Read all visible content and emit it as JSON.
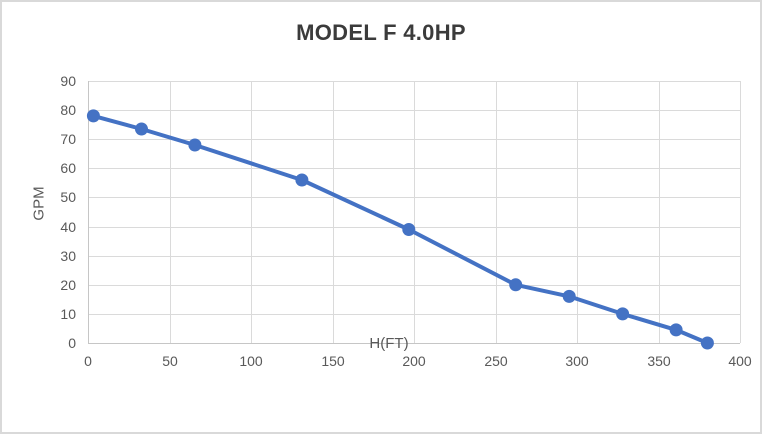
{
  "chart_data": {
    "type": "line",
    "title": "MODEL F 4.0HP",
    "xlabel": "H(FT)",
    "ylabel": "GPM",
    "x": [
      3.3,
      32.8,
      65.6,
      131.2,
      196.8,
      262.4,
      295.2,
      328,
      360.8,
      380
    ],
    "series": [
      {
        "name": "GPM",
        "values": [
          78,
          73.5,
          68,
          56,
          39,
          20,
          16,
          10,
          4.5,
          0
        ]
      }
    ],
    "xlim": [
      0,
      400
    ],
    "ylim": [
      0,
      90
    ],
    "x_ticks": [
      0,
      50,
      100,
      150,
      200,
      250,
      300,
      350,
      400
    ],
    "y_ticks": [
      0,
      10,
      20,
      30,
      40,
      50,
      60,
      70,
      80,
      90
    ],
    "grid": true,
    "legend_position": "none",
    "line_color": "#4472c4",
    "marker": "circle",
    "gridline_color": "#dadada",
    "axis_line_color": "#c6c6c6",
    "tick_label_color": "#595959",
    "title_color": "#3b3b3b",
    "frame_border_color": "#d9d9d9",
    "background_color": "#ffffff"
  }
}
